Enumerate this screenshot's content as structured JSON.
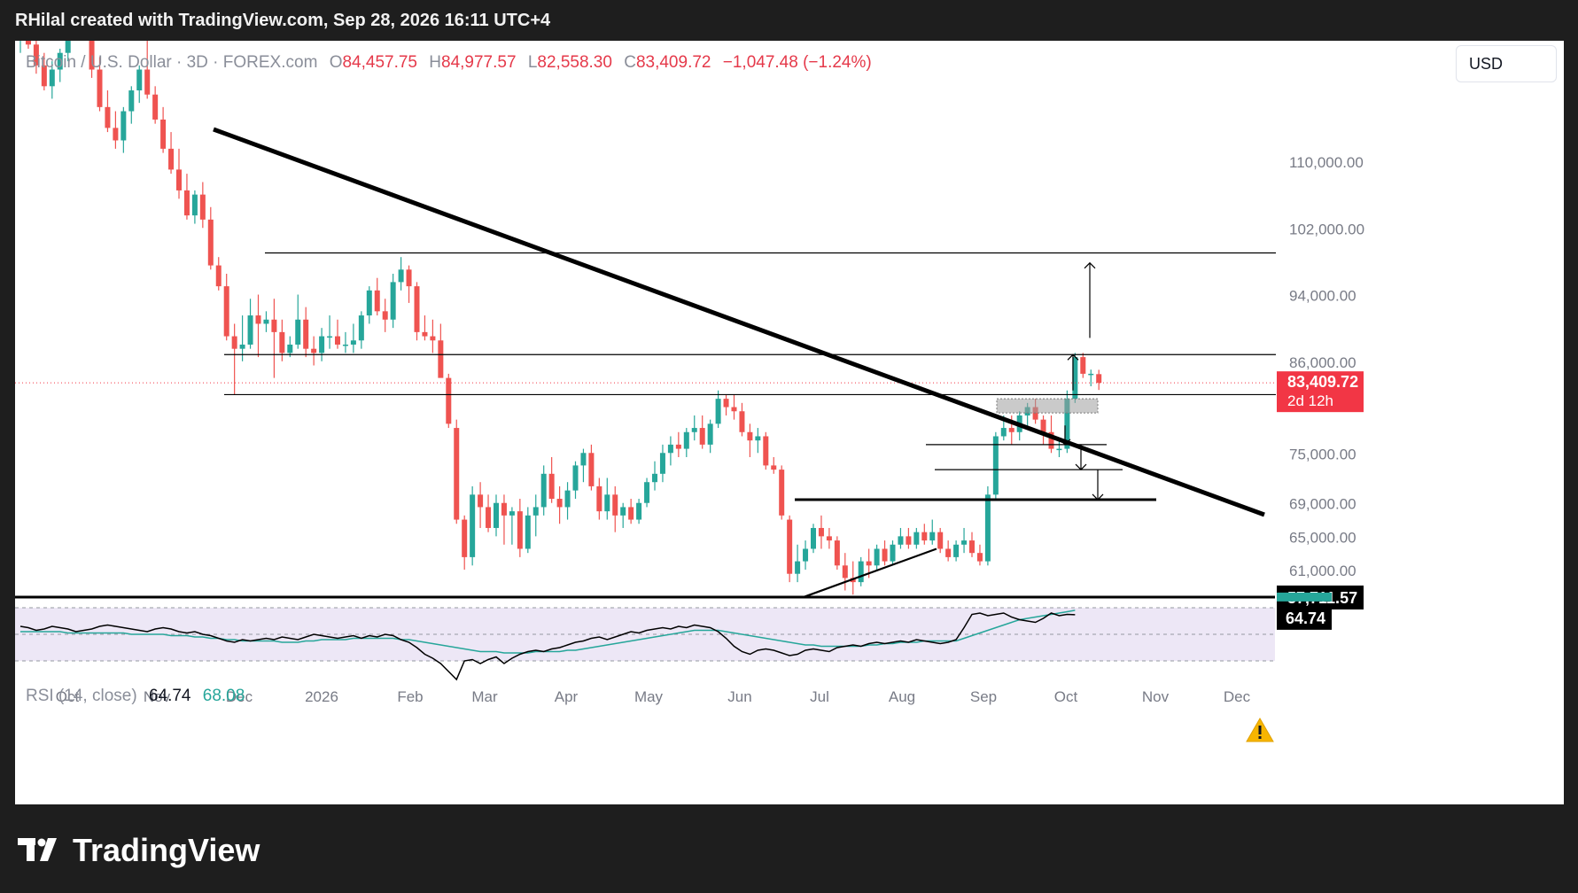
{
  "header": {
    "attribution": "RHilal created with TradingView.com, Sep 28, 2026 16:11 UTC+4"
  },
  "legend": {
    "symbol": "Bitcoin / U.S. Dollar · 3D · FOREX.com",
    "open_label": "O",
    "open": "84,457.75",
    "high_label": "H",
    "high": "84,977.57",
    "low_label": "L",
    "low": "82,558.30",
    "close_label": "C",
    "close": "83,409.72",
    "change": "−1,047.48 (−1.24%)"
  },
  "currency_button": "USD",
  "price_badge": {
    "price": "83,409.72",
    "countdown": "2d 12h"
  },
  "support_badge": "57,711.57",
  "rsi": {
    "label": "RSI (14, close)",
    "value": "64.74",
    "ma_value": "68.08",
    "badge": "64.74"
  },
  "footer": {
    "brand": "TradingView"
  },
  "colors": {
    "up": "#26a69a",
    "down": "#ef5350",
    "rsi_line": "#000000",
    "rsi_ma": "#26a69a",
    "rsi_band": "#ede7f6",
    "price_badge": "#f23645",
    "warning": "#f7b500"
  },
  "chart_data": {
    "type": "candlestick",
    "instrument": "Bitcoin / U.S. Dollar",
    "timeframe": "3D",
    "y_ticks": [
      110000,
      102000,
      94000,
      86000,
      75000,
      69000,
      65000,
      61000
    ],
    "y_tick_labels": [
      "110,000.00",
      "102,000.00",
      "94,000.00",
      "86,000.00",
      "75,000.00",
      "69,000.00",
      "65,000.00",
      "61,000.00"
    ],
    "x_labels": [
      "Oct",
      "Nov",
      "Dec",
      "2026",
      "Feb",
      "Mar",
      "Apr",
      "May",
      "Jun",
      "Jul",
      "Aug",
      "Sep",
      "Oct",
      "Nov",
      "Dec"
    ],
    "candles": [
      [
        124500,
        127000,
        123000,
        126000
      ],
      [
        126000,
        127500,
        123500,
        124000
      ],
      [
        124000,
        125000,
        120500,
        121500
      ],
      [
        121500,
        123000,
        118500,
        119000
      ],
      [
        119000,
        122000,
        117500,
        121000
      ],
      [
        121000,
        123500,
        119500,
        123000
      ],
      [
        123000,
        128000,
        122000,
        127000
      ],
      [
        127000,
        129500,
        125000,
        128500
      ],
      [
        128500,
        130500,
        126000,
        126500
      ],
      [
        126500,
        127500,
        120000,
        121000
      ],
      [
        121000,
        122500,
        116000,
        116500
      ],
      [
        116500,
        118500,
        113500,
        114000
      ],
      [
        114000,
        116000,
        111500,
        112500
      ],
      [
        112500,
        116500,
        111000,
        116000
      ],
      [
        116000,
        119000,
        114500,
        118500
      ],
      [
        118500,
        121500,
        117000,
        121000
      ],
      [
        121000,
        124500,
        117500,
        118000
      ],
      [
        118000,
        119000,
        114500,
        115000
      ],
      [
        115000,
        116500,
        111000,
        111500
      ],
      [
        111500,
        113500,
        108500,
        109000
      ],
      [
        109000,
        111500,
        105500,
        106500
      ],
      [
        106500,
        108500,
        103000,
        103500
      ],
      [
        103500,
        106500,
        102500,
        106000
      ],
      [
        106000,
        107500,
        102000,
        103000
      ],
      [
        103000,
        104500,
        97000,
        97500
      ],
      [
        97500,
        98500,
        94500,
        95000
      ],
      [
        95000,
        96500,
        88500,
        89000
      ],
      [
        89000,
        90500,
        82000,
        87500
      ],
      [
        87500,
        91500,
        86000,
        88000
      ],
      [
        88000,
        93500,
        87500,
        91500
      ],
      [
        91500,
        94000,
        86500,
        90500
      ],
      [
        90500,
        92000,
        89500,
        91000
      ],
      [
        91000,
        93500,
        84000,
        89500
      ],
      [
        89500,
        91000,
        86000,
        87000
      ],
      [
        87000,
        89000,
        86500,
        88000
      ],
      [
        88000,
        94000,
        87500,
        91000
      ],
      [
        91000,
        92500,
        86500,
        87500
      ],
      [
        87500,
        89000,
        85500,
        87000
      ],
      [
        87000,
        90000,
        86000,
        89000
      ],
      [
        89000,
        91500,
        87500,
        89000
      ],
      [
        89000,
        91000,
        87500,
        88000
      ],
      [
        88000,
        89500,
        87000,
        88000
      ],
      [
        88000,
        90500,
        87000,
        88500
      ],
      [
        88500,
        92000,
        87500,
        91500
      ],
      [
        91500,
        95000,
        90500,
        94500
      ],
      [
        94500,
        96000,
        91500,
        92000
      ],
      [
        92000,
        93500,
        89500,
        91000
      ],
      [
        91000,
        96500,
        90000,
        95500
      ],
      [
        95500,
        98500,
        94500,
        97000
      ],
      [
        97000,
        97500,
        93000,
        95000
      ],
      [
        95000,
        95500,
        88500,
        89500
      ],
      [
        89500,
        91500,
        88500,
        89000
      ],
      [
        89000,
        91000,
        87000,
        88500
      ],
      [
        88500,
        90500,
        84500,
        84000
      ],
      [
        84000,
        84500,
        78000,
        78500
      ],
      [
        78000,
        79000,
        66500,
        67000
      ],
      [
        67000,
        67500,
        61000,
        62500
      ],
      [
        62500,
        71000,
        61500,
        70000
      ],
      [
        70000,
        71500,
        66000,
        68500
      ],
      [
        68500,
        70000,
        65500,
        66000
      ],
      [
        66000,
        70000,
        65000,
        69000
      ],
      [
        69000,
        70000,
        64000,
        67500
      ],
      [
        67500,
        68500,
        64000,
        68000
      ],
      [
        68000,
        69500,
        62500,
        63500
      ],
      [
        63500,
        68500,
        63000,
        67500
      ],
      [
        67500,
        70000,
        65000,
        68500
      ],
      [
        68500,
        73500,
        67500,
        72500
      ],
      [
        72500,
        74500,
        69000,
        69500
      ],
      [
        69500,
        71000,
        66500,
        68500
      ],
      [
        68500,
        71500,
        67000,
        70500
      ],
      [
        70500,
        74000,
        69500,
        73500
      ],
      [
        73500,
        75500,
        71500,
        75000
      ],
      [
        75000,
        76000,
        70500,
        71000
      ],
      [
        71000,
        72000,
        67000,
        68000
      ],
      [
        68000,
        72000,
        67000,
        70000
      ],
      [
        70000,
        71000,
        65500,
        67500
      ],
      [
        67500,
        69000,
        66000,
        68500
      ],
      [
        68500,
        69500,
        66500,
        67000
      ],
      [
        67000,
        69500,
        66500,
        69000
      ],
      [
        69000,
        72000,
        68500,
        71500
      ],
      [
        71500,
        74000,
        70500,
        72500
      ],
      [
        72500,
        76000,
        71500,
        75000
      ],
      [
        75000,
        77000,
        73500,
        76000
      ],
      [
        76000,
        77500,
        74500,
        75500
      ],
      [
        75500,
        78000,
        74500,
        77500
      ],
      [
        77500,
        79500,
        76500,
        78000
      ],
      [
        78000,
        79500,
        75500,
        76000
      ],
      [
        76000,
        79000,
        75000,
        78500
      ],
      [
        78500,
        82500,
        78000,
        81500
      ],
      [
        81500,
        82000,
        79500,
        80500
      ],
      [
        80500,
        82000,
        79000,
        80000
      ],
      [
        80000,
        81000,
        77000,
        77500
      ],
      [
        77500,
        78500,
        74500,
        76500
      ],
      [
        76500,
        78000,
        75000,
        77000
      ],
      [
        77000,
        77500,
        73000,
        73500
      ],
      [
        73500,
        74500,
        72500,
        73000
      ],
      [
        73000,
        73500,
        67000,
        67500
      ],
      [
        67000,
        67500,
        59500,
        60500
      ],
      [
        60500,
        64000,
        59500,
        62000
      ],
      [
        62000,
        64500,
        61000,
        63500
      ],
      [
        63500,
        66500,
        63000,
        66000
      ],
      [
        66000,
        67500,
        63500,
        65000
      ],
      [
        65000,
        66000,
        63500,
        64500
      ],
      [
        64500,
        65000,
        61000,
        61500
      ],
      [
        61500,
        63000,
        58500,
        60000
      ],
      [
        60000,
        62000,
        58000,
        59500
      ],
      [
        59500,
        62500,
        59000,
        62000
      ],
      [
        62000,
        63500,
        60000,
        61500
      ],
      [
        61500,
        64000,
        61000,
        63500
      ],
      [
        63500,
        64500,
        61500,
        62000
      ],
      [
        62000,
        64500,
        61500,
        64000
      ],
      [
        64000,
        66000,
        63500,
        65000
      ],
      [
        65000,
        66000,
        63500,
        64000
      ],
      [
        64000,
        66000,
        63500,
        65500
      ],
      [
        65500,
        66500,
        64000,
        64500
      ],
      [
        64500,
        67000,
        64000,
        65500
      ],
      [
        65500,
        66000,
        63000,
        63500
      ],
      [
        63500,
        64500,
        62000,
        62500
      ],
      [
        62500,
        64500,
        62000,
        64000
      ],
      [
        64000,
        66000,
        63000,
        64500
      ],
      [
        64500,
        65500,
        62500,
        63000
      ],
      [
        63000,
        64000,
        61500,
        62000
      ],
      [
        62000,
        71000,
        61500,
        70000
      ],
      [
        70000,
        77500,
        69500,
        77000
      ],
      [
        77000,
        79500,
        76500,
        78000
      ],
      [
        78000,
        79500,
        76000,
        77500
      ],
      [
        77500,
        80000,
        76500,
        79500
      ],
      [
        79500,
        81000,
        78000,
        80500
      ],
      [
        80500,
        81500,
        78500,
        79000
      ],
      [
        79000,
        79500,
        76000,
        77500
      ],
      [
        77500,
        79500,
        75000,
        75500
      ],
      [
        75500,
        76500,
        74500,
        75500
      ],
      [
        75500,
        82500,
        75000,
        81500
      ],
      [
        81500,
        87000,
        81000,
        86500
      ],
      [
        86500,
        87000,
        84000,
        84500
      ],
      [
        84500,
        85000,
        83000,
        84500
      ],
      [
        84457.75,
        84977.57,
        82558.3,
        83409.72
      ]
    ],
    "horizontal_levels": [
      99000,
      86800,
      82000,
      76000,
      73000,
      69400,
      57711.57
    ],
    "current_price": 83409.72,
    "support_level": 57711.57,
    "rsi_series": [
      56,
      55,
      53,
      54,
      56,
      55,
      54,
      52,
      53,
      54,
      56,
      57,
      56,
      55,
      54,
      53,
      52,
      54,
      55,
      54,
      52,
      51,
      52,
      50,
      49,
      47,
      45,
      44,
      46,
      45,
      46,
      47,
      46,
      48,
      47,
      46,
      48,
      50,
      49,
      48,
      47,
      48,
      49,
      47,
      49,
      48,
      50,
      49,
      46,
      44,
      40,
      35,
      32,
      28,
      22,
      16,
      30,
      31,
      28,
      31,
      33,
      28,
      32,
      35,
      37,
      38,
      37,
      39,
      40,
      42,
      44,
      45,
      47,
      48,
      46,
      48,
      50,
      52,
      51,
      53,
      54,
      55,
      54,
      56,
      55,
      57,
      56,
      55,
      52,
      47,
      41,
      37,
      35,
      38,
      39,
      38,
      36,
      34,
      35,
      38,
      39,
      38,
      37,
      40,
      41,
      42,
      41,
      43,
      44,
      43,
      44,
      45,
      44,
      46,
      45,
      44,
      43,
      44,
      46,
      55,
      65,
      66,
      64,
      65,
      66,
      63,
      61,
      60,
      59,
      62,
      66,
      64,
      65,
      64.74
    ],
    "rsi_ma_series": [
      52,
      52,
      52,
      52,
      52,
      52,
      51,
      51,
      51,
      51,
      51,
      51,
      51,
      51,
      50,
      50,
      50,
      50,
      50,
      49,
      49,
      49,
      48,
      48,
      47,
      47,
      46,
      46,
      45,
      45,
      45,
      45,
      45,
      44,
      44,
      44,
      45,
      45,
      46,
      46,
      46,
      46,
      47,
      47,
      47,
      47,
      47,
      47,
      46,
      46,
      45,
      44,
      43,
      42,
      41,
      40,
      39,
      38,
      37,
      37,
      37,
      36,
      36,
      36,
      36,
      37,
      37,
      37,
      37,
      38,
      38,
      39,
      40,
      41,
      42,
      43,
      44,
      45,
      46,
      47,
      48,
      49,
      50,
      51,
      52,
      53,
      53,
      53,
      53,
      52,
      51,
      50,
      49,
      48,
      47,
      46,
      45,
      44,
      43,
      42,
      42,
      41,
      41,
      41,
      41,
      41,
      41,
      42,
      42,
      43,
      43,
      44,
      44,
      44,
      45,
      45,
      45,
      45,
      45,
      47,
      49,
      51,
      53,
      55,
      57,
      59,
      61,
      62,
      63,
      64,
      65,
      66,
      67,
      68.08
    ],
    "rsi_levels": [
      70,
      50,
      30
    ]
  }
}
